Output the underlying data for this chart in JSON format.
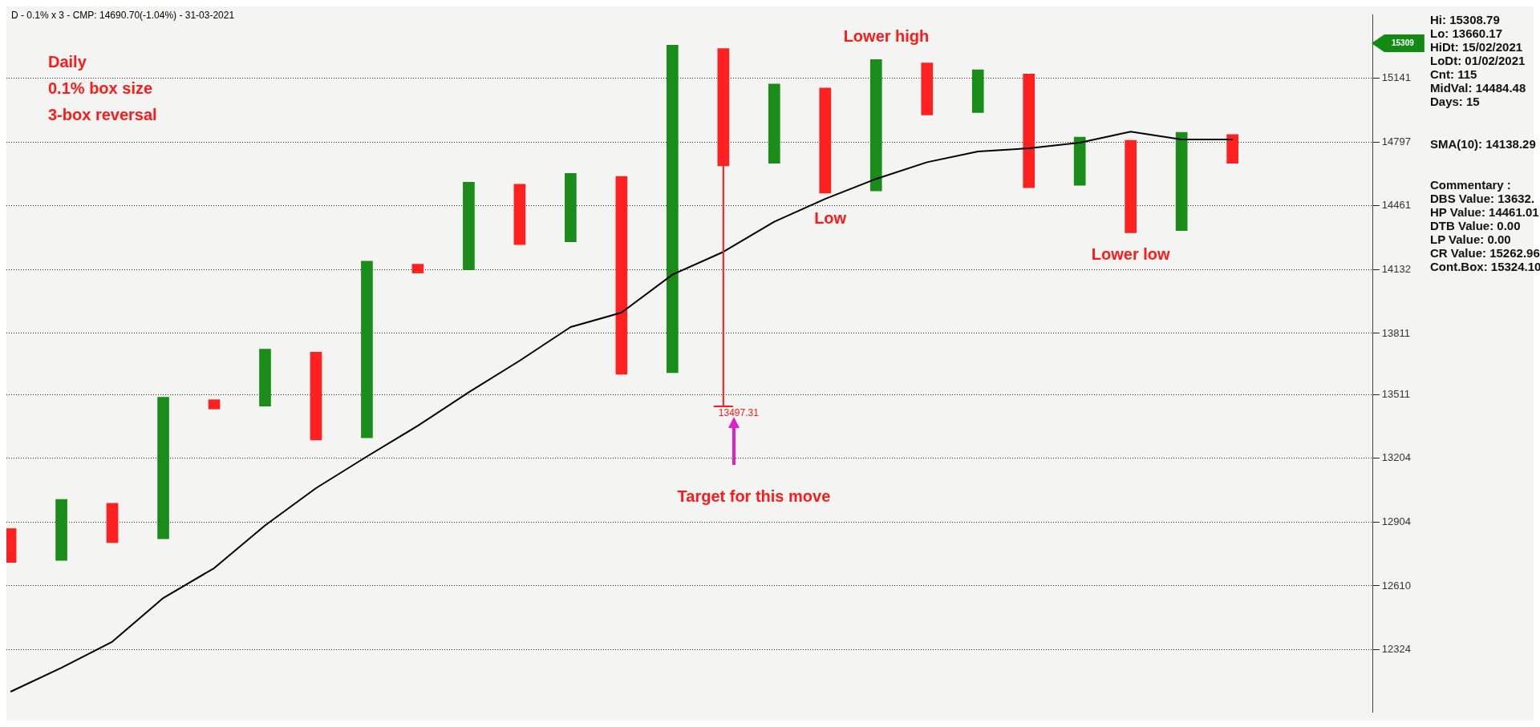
{
  "chart_data": {
    "type": "bar",
    "title": "D - 0.1% x 3 - CMP: 14690.70(-1.04%) - 31-03-2021",
    "categories": [
      null,
      null,
      null,
      null,
      null,
      null,
      null,
      null,
      null,
      null,
      null,
      null,
      null,
      null,
      null,
      null,
      null,
      null,
      null,
      null,
      null,
      null,
      null,
      null,
      null
    ],
    "series": [
      {
        "base": [
          12717,
          12726,
          12808,
          12826,
          13440,
          13454,
          13291,
          13301,
          14115,
          14131,
          14260,
          14275,
          13609,
          13617,
          14671,
          14684,
          14527,
          14539,
          14942,
          14955,
          14556,
          14568,
          14321,
          14333,
          14684
        ],
        "values": [
          156,
          283,
          183,
          671,
          45,
          279,
          427,
          874,
          45,
          454,
          314,
          356,
          1006,
          1706,
          633,
          426,
          561,
          705,
          283,
          232,
          609,
          255,
          485,
          516,
          153
        ],
        "colors": [
          "#ff2020",
          "#1a8c1a",
          "#ff2020",
          "#1a8c1a",
          "#ff2020",
          "#1a8c1a",
          "#ff2020",
          "#1a8c1a",
          "#ff2020",
          "#1a8c1a",
          "#ff2020",
          "#1a8c1a",
          "#ff2020",
          "#1a8c1a",
          "#ff2020",
          "#1a8c1a",
          "#ff2020",
          "#1a8c1a",
          "#ff2020",
          "#1a8c1a",
          "#ff2020",
          "#1a8c1a",
          "#ff2020",
          "#1a8c1a",
          "#ff2020"
        ]
      },
      {
        "type": "line",
        "color": "#000000",
        "values": [
          12138,
          12243,
          12359,
          12555,
          12691,
          12888,
          13062,
          13212,
          13359,
          13521,
          13676,
          13843,
          13915,
          14107,
          14223,
          14378,
          14497,
          14602,
          14690,
          14747,
          14764,
          14794,
          14853,
          14811,
          14811
        ]
      }
    ],
    "log": "y",
    "ylim": [
      12050,
      15490
    ],
    "yticks": [
      12324,
      12610,
      12904,
      13204,
      13511,
      13811,
      14132,
      14461,
      14797,
      15141
    ],
    "grid": "y",
    "tick_labels": "y",
    "legend": false,
    "annotations": [
      "Daily",
      "0.1% box size",
      "3-box reversal",
      "Lower high",
      "Low",
      "Lower low",
      "Target for this move",
      "13497.31",
      "15309",
      "Hi: 15308.79",
      "Lo: 13660.17",
      "HiDt: 15/02/2021",
      "LoDt: 01/02/2021",
      "Cnt: 115",
      "MidVal: 14484.48",
      "Days: 15",
      "SMA(10): 14138.29",
      "Commentary :",
      "DBS Value:  13632.",
      "HP Value: 14461.01",
      "DTB Value: 0.00",
      "LP Value: 0.00",
      "CR Value: 15262.96",
      "Cont.Box: 15324.10"
    ]
  }
}
